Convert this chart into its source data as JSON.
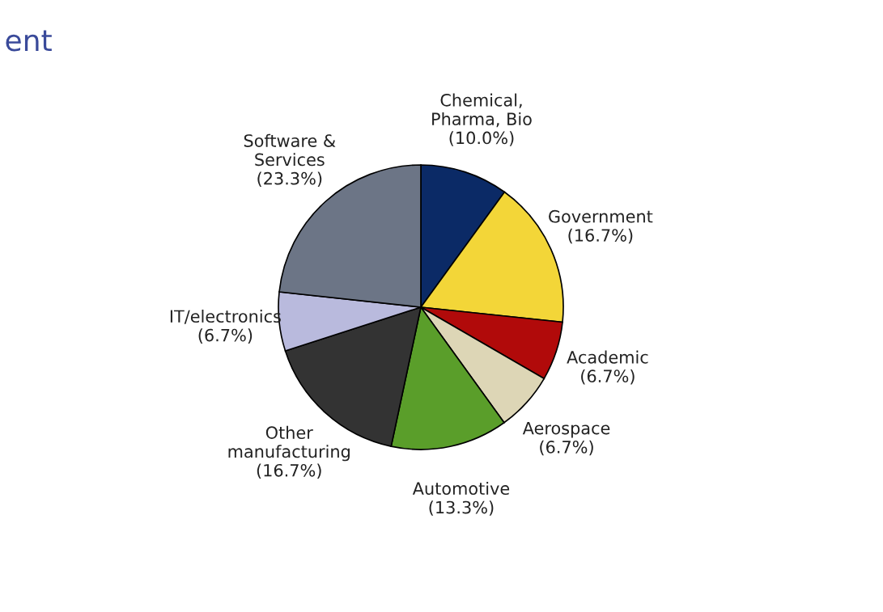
{
  "chart_data": {
    "type": "pie",
    "title": "ent",
    "categories": [
      "Chemical,\nPharma, Bio",
      "Government",
      "Academic",
      "Aerospace",
      "Automotive",
      "Other\nmanufacturing",
      "IT/electronics",
      "Software &\nServices"
    ],
    "values": [
      10.0,
      16.7,
      6.7,
      6.7,
      13.3,
      16.7,
      6.7,
      23.3
    ],
    "value_labels": [
      "(10.0%)",
      "(16.7%)",
      "(6.7%)",
      "(6.7%)",
      "(13.3%)",
      "(16.7%)",
      "(6.7%)",
      "(23.3%)"
    ],
    "colors": [
      "#0b2a66",
      "#f3d638",
      "#b10a0a",
      "#ddd6b6",
      "#5a9e2a",
      "#333333",
      "#b9badd",
      "#6c7586"
    ],
    "legend": false
  }
}
